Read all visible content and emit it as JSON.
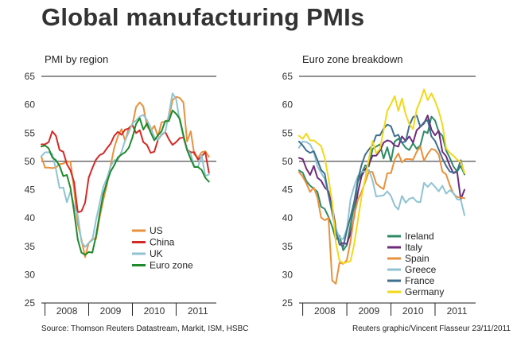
{
  "title": "Global manufacturing PMIs",
  "source": "Source: Thomson Reuters Datastream, Markit, ISM, HSBC",
  "credit": "Reuters graphic/Vincent Flasseur 23/11/2011",
  "colors": {
    "US": "#e8913c",
    "China": "#d42a26",
    "UK": "#8fc3d3",
    "Euro zone": "#1f8a2c",
    "Ireland": "#2e8b66",
    "Italy": "#6e2b7b",
    "Spain": "#e8913c",
    "Greece": "#8fc3d3",
    "France": "#3f6f8f",
    "Germany": "#f2d81a"
  },
  "chart_data": [
    {
      "type": "line",
      "title": "PMI by region",
      "ylim": [
        25,
        65
      ],
      "yticks": [
        25,
        30,
        35,
        40,
        45,
        50,
        55,
        60,
        65
      ],
      "reference_line": 50,
      "x_start": 2007.917,
      "x_step": 0.08333,
      "year_ticks": [
        "2008",
        "2009",
        "2010",
        "2011"
      ],
      "legend_position": "bottom-center",
      "series": [
        {
          "name": "US",
          "values": [
            50.8,
            48.9,
            48.9,
            48.8,
            48.9,
            49.5,
            49.6,
            50.0,
            49.9,
            45.0,
            38.9,
            36.2,
            33.1,
            35.6,
            36.3,
            36.3,
            40.1,
            43.2,
            45.8,
            49.2,
            52.4,
            54.4,
            55.7,
            53.6,
            55.9,
            56.5,
            59.6,
            60.4,
            59.7,
            56.2,
            55.3,
            56.3,
            54.4,
            56.9,
            57.0,
            57.5,
            60.8,
            61.4,
            61.2,
            60.4,
            53.5,
            55.3,
            51.2,
            50.6,
            51.6,
            51.8,
            50.8
          ]
        },
        {
          "name": "China",
          "values": [
            53.0,
            53.0,
            53.4,
            55.3,
            54.5,
            52.0,
            51.7,
            49.5,
            48.4,
            46.3,
            41.0,
            41.2,
            42.7,
            47.1,
            48.8,
            50.3,
            51.1,
            51.4,
            52.3,
            53.1,
            54.5,
            55.2,
            54.7,
            55.6,
            55.8,
            56.4,
            55.0,
            55.5,
            53.4,
            52.9,
            51.5,
            51.7,
            53.8,
            54.7,
            55.2,
            53.9,
            52.9,
            53.4,
            54.1,
            54.2,
            52.1,
            51.6,
            51.6,
            50.3,
            50.9,
            51.6,
            48.0
          ]
        },
        {
          "name": "UK",
          "values": [
            50.9,
            51.6,
            51.6,
            51.3,
            48.6,
            45.3,
            45.4,
            42.8,
            44.7,
            42.1,
            40.5,
            35.8,
            34.9,
            35.6,
            36.1,
            39.6,
            42.6,
            45.5,
            47.0,
            49.1,
            50.2,
            50.2,
            51.7,
            53.7,
            55.1,
            56.7,
            57.2,
            57.9,
            58.2,
            57.3,
            56.0,
            54.3,
            53.8,
            54.8,
            55.2,
            58.3,
            62.0,
            61.0,
            57.1,
            54.4,
            52.1,
            51.3,
            49.1,
            49.0,
            51.1,
            47.4,
            47.7
          ]
        },
        {
          "name": "Euro zone",
          "values": [
            52.6,
            52.8,
            52.3,
            50.7,
            50.2,
            49.2,
            47.4,
            47.6,
            45.3,
            41.1,
            36.2,
            33.9,
            33.5,
            34.0,
            33.9,
            36.8,
            40.7,
            44.2,
            46.3,
            48.2,
            49.3,
            50.7,
            51.2,
            51.6,
            52.4,
            54.2,
            56.6,
            57.6,
            55.6,
            56.7,
            55.1,
            53.7,
            54.6,
            55.3,
            57.1,
            57.1,
            59.0,
            58.4,
            57.5,
            54.6,
            52.0,
            50.4,
            49.0,
            49.0,
            48.5,
            47.1,
            46.4
          ]
        }
      ]
    },
    {
      "type": "line",
      "title": "Euro zone breakdown",
      "ylim": [
        25,
        65
      ],
      "yticks": [
        25,
        30,
        35,
        40,
        45,
        50,
        55,
        60,
        65
      ],
      "reference_line": 50,
      "x_start": 2007.917,
      "x_step": 0.08333,
      "year_ticks": [
        "2008",
        "2009",
        "2010",
        "2011"
      ],
      "legend_position": "bottom-center",
      "series": [
        {
          "name": "Ireland",
          "values": [
            48.4,
            48.0,
            46.5,
            45.7,
            45.2,
            44.6,
            42.0,
            41.6,
            40.2,
            38.5,
            36.2,
            36.9,
            34.3,
            35.2,
            38.8,
            42.1,
            46.4,
            47.9,
            49.3,
            49.1,
            52.2,
            52.6,
            53.0,
            50.5,
            52.5,
            50.0,
            53.5,
            54.0,
            53.3,
            52.4,
            52.0,
            53.2,
            52.2,
            52.8,
            55.3,
            55.0,
            57.9,
            57.2,
            55.2,
            54.5,
            51.9,
            50.6,
            49.1,
            48.2,
            49.2,
            47.7
          ]
        },
        {
          "name": "Italy",
          "values": [
            50.6,
            50.4,
            48.7,
            47.6,
            49.2,
            47.1,
            46.6,
            45.4,
            44.7,
            42.1,
            38.3,
            35.3,
            35.6,
            35.4,
            37.3,
            40.2,
            44.5,
            47.4,
            48.6,
            49.5,
            51.0,
            51.0,
            51.9,
            53.3,
            53.7,
            53.5,
            52.8,
            52.6,
            54.4,
            53.6,
            54.4,
            53.3,
            55.5,
            56.1,
            56.7,
            58.1,
            55.6,
            54.6,
            55.4,
            51.7,
            50.9,
            49.2,
            47.9,
            48.2,
            43.3,
            45.0
          ]
        },
        {
          "name": "Spain",
          "values": [
            48.1,
            47.3,
            46.1,
            44.6,
            45.4,
            43.6,
            40.1,
            39.6,
            40.0,
            29.0,
            28.4,
            32.1,
            31.9,
            32.6,
            35.9,
            40.5,
            43.2,
            44.6,
            46.4,
            48.2,
            48.1,
            46.1,
            45.5,
            45.1,
            47.9,
            47.9,
            50.3,
            51.4,
            49.8,
            50.4,
            50.4,
            50.3,
            51.7,
            52.6,
            50.1,
            51.3,
            52.2,
            52.0,
            51.2,
            48.2,
            47.7,
            45.8,
            44.3,
            43.7,
            43.6,
            43.5
          ]
        },
        {
          "name": "Greece",
          "values": [
            52.4,
            53.5,
            53.4,
            53.0,
            51.7,
            49.1,
            48.0,
            46.9,
            44.1,
            40.7,
            38.2,
            36.5,
            36.3,
            38.1,
            43.3,
            45.6,
            47.4,
            48.2,
            48.2,
            48.5,
            46.6,
            43.8,
            43.9,
            44.0,
            44.7,
            43.9,
            42.2,
            41.5,
            43.9,
            42.7,
            43.4,
            43.6,
            42.9,
            42.8,
            46.2,
            45.5,
            46.2,
            45.5,
            44.7,
            45.7,
            44.3,
            44.9,
            44.4,
            43.3,
            43.2,
            40.5
          ]
        },
        {
          "name": "France",
          "values": [
            53.5,
            52.8,
            51.9,
            51.5,
            51.8,
            50.2,
            48.5,
            47.8,
            44.1,
            41.2,
            37.5,
            35.5,
            34.9,
            37.8,
            40.2,
            42.9,
            46.7,
            49.4,
            51.2,
            52.1,
            52.9,
            54.6,
            54.6,
            55.8,
            56.5,
            56.2,
            54.4,
            54.7,
            53.3,
            53.5,
            56.3,
            57.8,
            58.1,
            56.1,
            56.9,
            57.3,
            54.4,
            53.6,
            52.1,
            50.5,
            49.2,
            48.2,
            48.0,
            48.3,
            50.2,
            47.7
          ]
        },
        {
          "name": "Germany",
          "values": [
            54.5,
            54.0,
            54.9,
            53.7,
            53.7,
            53.2,
            52.7,
            50.6,
            47.0,
            42.9,
            35.7,
            32.5,
            32.0,
            32.2,
            32.4,
            35.4,
            39.6,
            43.8,
            47.0,
            50.5,
            53.6,
            51.4,
            52.2,
            55.5,
            58.9,
            60.1,
            61.5,
            58.9,
            61.1,
            58.3,
            56.6,
            55.7,
            59.2,
            60.7,
            62.7,
            60.8,
            62.0,
            60.6,
            58.9,
            56.5,
            52.3,
            51.5,
            51.0,
            50.3,
            49.9,
            47.9
          ]
        }
      ]
    }
  ]
}
